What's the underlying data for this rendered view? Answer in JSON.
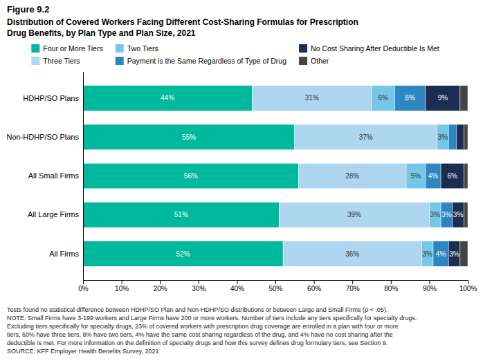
{
  "chart_data": {
    "type": "bar",
    "orientation": "horizontal",
    "stacked": true,
    "data_labels": true,
    "grid": false,
    "legend": "top",
    "title": "Figure 9.2",
    "subtitle": [
      "Distribution of Covered Workers Facing Different Cost-Sharing Formulas for Prescription",
      "Drug Benefits, by Plan Type and Plan Size, 2021"
    ],
    "categories": [
      "HDHP/SO Plans",
      "Non-HDHP/SO Plans",
      "All Small Firms",
      "All Large Firms",
      "All Firms"
    ],
    "series": [
      {
        "name": "Four or More Tiers",
        "color": "#00b89c",
        "values": [
          44,
          55,
          56,
          51,
          52
        ],
        "value_labels": [
          "44%",
          "55%",
          "56%",
          "51%",
          "52%"
        ]
      },
      {
        "name": "Three Tiers",
        "color": "#aed6f1",
        "values": [
          31,
          37,
          28,
          39,
          36
        ],
        "value_labels": [
          "31%",
          "37%",
          "28%",
          "39%",
          "36%"
        ]
      },
      {
        "name": "Two Tiers",
        "color": "#76c6e8",
        "values": [
          6,
          3,
          5,
          3,
          3
        ],
        "value_labels": [
          "6%",
          "3%",
          "5%",
          "3%",
          "3%"
        ]
      },
      {
        "name": "Payment is the Same Regardless of Type of Drug",
        "color": "#2e86c1",
        "values": [
          8,
          2,
          4,
          3,
          4
        ],
        "value_labels": [
          "8%",
          null,
          "4%",
          "3%",
          "4%"
        ]
      },
      {
        "name": "No Cost Sharing After Deductible Is Met",
        "color": "#1b2e52",
        "values": [
          9,
          2,
          6,
          3,
          3
        ],
        "value_labels": [
          "9%",
          null,
          "6%",
          "3%",
          "3%"
        ]
      },
      {
        "name": "Other",
        "color": "#444444",
        "values": [
          2,
          1,
          1,
          1,
          2
        ],
        "value_labels": [
          null,
          null,
          null,
          null,
          null
        ]
      }
    ],
    "xlim": [
      0,
      100
    ],
    "xticks": [
      {
        "value": 0,
        "label": "0%"
      },
      {
        "value": 10,
        "label": "10%"
      },
      {
        "value": 20,
        "label": "20%"
      },
      {
        "value": 30,
        "label": "30%"
      },
      {
        "value": 40,
        "label": "40%"
      },
      {
        "value": 50,
        "label": "50%"
      },
      {
        "value": 60,
        "label": "60%"
      },
      {
        "value": 70,
        "label": "70%"
      },
      {
        "value": 80,
        "label": "80%"
      },
      {
        "value": 90,
        "label": "90%"
      },
      {
        "value": 100,
        "label": "100%"
      }
    ],
    "annotations": [
      "Tests found no statistical difference between HDHP/SO Plan and Non-HDHP/SO distributions or between Large and Small Firms (p < .05).",
      "NOTE: Small Firms have 3-199 workers and Large Firms have 200 or more workers. Number of tiers include any tiers specifically for specialty drugs.",
      "Excluding tiers specifically for specialty drugs, 23% of covered workers with prescription drug coverage are enrolled in a plan with four or more",
      "tiers, 60% have three tiers, 8% have two tiers, 4% have the same cost sharing regardless of the drug, and 4% have no cost sharing after the",
      "deductible is met. For more information on the definition of specialty drugs and how this survey defines drug formulary tiers, see Section 9.",
      "SOURCE: KFF Employer Health Benefits Survey, 2021"
    ]
  }
}
